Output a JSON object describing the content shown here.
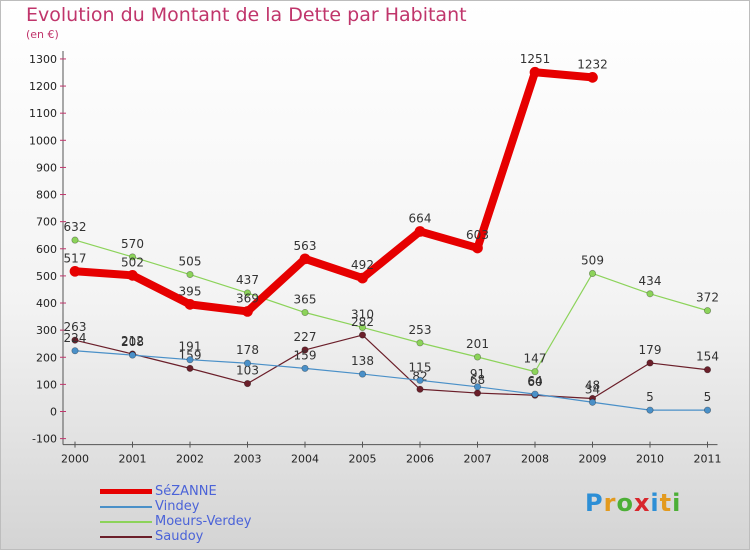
{
  "title": "Evolution du Montant de la Dette par Habitant",
  "unit": "(en €)",
  "logo": "Proxiti",
  "chart_data": {
    "type": "line",
    "x": [
      "2000",
      "2001",
      "2002",
      "2003",
      "2004",
      "2005",
      "2006",
      "2007",
      "2008",
      "2009",
      "2010",
      "2011"
    ],
    "ylim": [
      -100,
      1300
    ],
    "yticks": [
      -100,
      0,
      100,
      200,
      300,
      400,
      500,
      600,
      700,
      800,
      900,
      1000,
      1100,
      1200,
      1300
    ],
    "grid": false,
    "legend_position": "bottom-left",
    "series": [
      {
        "name": "SéZANNE",
        "color": "#e60000",
        "values": [
          517,
          502,
          395,
          369,
          563,
          492,
          664,
          603,
          1251,
          1232,
          null,
          null
        ]
      },
      {
        "name": "Vindey",
        "color": "#4a90c8",
        "values": [
          224,
          208,
          191,
          178,
          159,
          138,
          115,
          91,
          64,
          34,
          5,
          5
        ]
      },
      {
        "name": "Moeurs-Verdey",
        "color": "#8cd35a",
        "values": [
          632,
          570,
          505,
          437,
          365,
          310,
          253,
          201,
          147,
          509,
          434,
          372
        ]
      },
      {
        "name": "Saudoy",
        "color": "#6b1f2a",
        "values": [
          263,
          212,
          159,
          103,
          227,
          282,
          82,
          68,
          60,
          48,
          179,
          154
        ]
      }
    ]
  }
}
